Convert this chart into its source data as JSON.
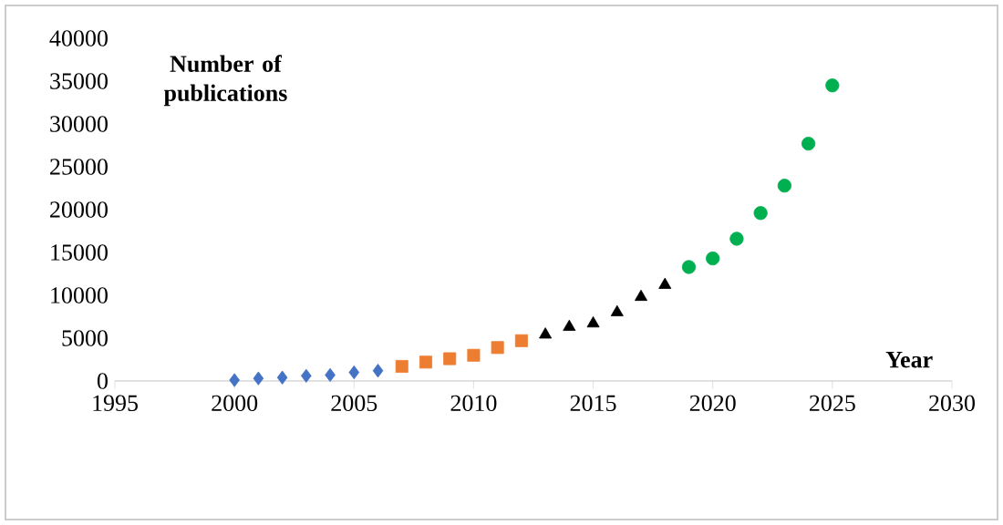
{
  "chart_data": {
    "type": "scatter",
    "xlabel": "Year",
    "ylabel": "Number of publications",
    "xlim": [
      1995,
      2030
    ],
    "xticks": [
      1995,
      2000,
      2005,
      2010,
      2015,
      2020,
      2025,
      2030
    ],
    "ylim": [
      0,
      40000
    ],
    "yticks": [
      0,
      5000,
      10000,
      15000,
      20000,
      25000,
      30000,
      35000,
      40000
    ],
    "grid": false,
    "series": [
      {
        "color": "#4472c4",
        "marker": "diamond",
        "x": [
          2000,
          2001,
          2002,
          2003,
          2004,
          2005,
          2006
        ],
        "values": [
          100,
          300,
          400,
          600,
          700,
          1000,
          1200
        ]
      },
      {
        "color": "#ed7d31",
        "marker": "square",
        "x": [
          2007,
          2008,
          2009,
          2010,
          2011,
          2012
        ],
        "values": [
          1700,
          2200,
          2600,
          3000,
          3900,
          4700
        ]
      },
      {
        "color": "#000000",
        "marker": "triangle",
        "x": [
          2013,
          2014,
          2015,
          2016,
          2017,
          2018
        ],
        "values": [
          5400,
          6300,
          6700,
          8000,
          9800,
          11200
        ]
      },
      {
        "color": "#00b050",
        "marker": "circle",
        "x": [
          2019,
          2020,
          2021,
          2022,
          2023,
          2024,
          2025
        ],
        "values": [
          13300,
          14300,
          16600,
          19600,
          22800,
          27700,
          34500
        ]
      }
    ]
  }
}
